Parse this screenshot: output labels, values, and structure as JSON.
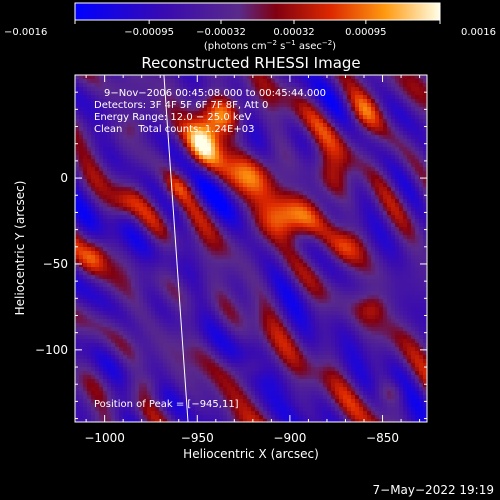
{
  "chart_data": {
    "type": "heatmap",
    "title": "Reconstructed RHESSI Image",
    "xlabel": "Heliocentric X (arcsec)",
    "ylabel": "Heliocentric Y (arcsec)",
    "xlim": [
      -1016,
      -826
    ],
    "ylim": [
      -142,
      60
    ],
    "x_ticks": [
      -1000,
      -950,
      -900,
      -850
    ],
    "x_tick_labels": [
      "−1000",
      "−950",
      "−900",
      "−850"
    ],
    "y_ticks": [
      0,
      -50,
      -100
    ],
    "y_tick_labels": [
      "0",
      "−50",
      "−100"
    ],
    "colorbar": {
      "range": [
        -0.0016,
        0.0016
      ],
      "ticks": [
        -0.0016,
        -0.00095,
        -0.00032,
        0.00032,
        0.00095,
        0.0016
      ],
      "tick_labels": [
        "−0.0016",
        "−0.00095",
        "−0.00032",
        "0.00032",
        "0.00095",
        "0.0016"
      ],
      "unit_parts": [
        "(photons cm",
        "−2",
        " s",
        "−1",
        " asec",
        "−2",
        ")"
      ]
    },
    "annotations": [
      "9−Nov−2006 00:45:08.000 to 00:45:44.000",
      "Detectors: 3F 4F 5F 6F 7F 8F, Att 0",
      "Energy Range: 12.0 − 25.0 keV",
      "Clean     Total counts: 1.24E+03"
    ],
    "peak_label": "Position of Peak = [−945,11]",
    "peak_position": [
      -945,
      11
    ],
    "sources": [
      {
        "x": -946,
        "y": 22,
        "amp": 0.00155,
        "sx": 7,
        "sy": 11
      },
      {
        "x": -935,
        "y": 38,
        "amp": 0.0012,
        "sx": 9,
        "sy": 8
      },
      {
        "x": -903,
        "y": -25,
        "amp": 0.0013,
        "sx": 13,
        "sy": 9
      },
      {
        "x": -915,
        "y": 5,
        "amp": 0.0009,
        "sx": 11,
        "sy": 9
      },
      {
        "x": -880,
        "y": 0,
        "amp": 0.0008,
        "sx": 8,
        "sy": 12
      },
      {
        "x": -860,
        "y": 38,
        "amp": 0.0009,
        "sx": 8,
        "sy": 10
      },
      {
        "x": -960,
        "y": -5,
        "amp": 0.0006,
        "sx": 6,
        "sy": 6
      },
      {
        "x": -870,
        "y": -40,
        "amp": 0.0007,
        "sx": 8,
        "sy": 8
      },
      {
        "x": -1005,
        "y": -45,
        "amp": 0.0006,
        "sx": 5,
        "sy": 7
      },
      {
        "x": -855,
        "y": -75,
        "amp": 0.0006,
        "sx": 6,
        "sy": 6
      },
      {
        "x": -920,
        "y": -110,
        "amp": 0.0005,
        "sx": 7,
        "sy": 5
      },
      {
        "x": -990,
        "y": -15,
        "amp": 0.0005,
        "sx": 6,
        "sy": 6
      },
      {
        "x": -985,
        "y": 30,
        "amp": 0.0004,
        "sx": 5,
        "sy": 5
      },
      {
        "x": -845,
        "y": -125,
        "amp": 0.0005,
        "sx": 6,
        "sy": 5
      },
      {
        "x": -975,
        "y": -120,
        "amp": 0.0004,
        "sx": 6,
        "sy": 5
      }
    ],
    "white_line": {
      "points": [
        [
          -968,
          60
        ],
        [
          -955,
          -142
        ]
      ]
    }
  },
  "footer": {
    "date": "7−May−2022 19:19"
  }
}
